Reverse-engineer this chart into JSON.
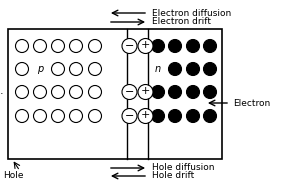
{
  "fig_width": 3.02,
  "fig_height": 1.81,
  "dpi": 100,
  "bg_color": "#ffffff",
  "p_label": "p",
  "n_label": "n",
  "top_arrow1_label": "Electron diffusion",
  "top_arrow2_label": "Electron drift",
  "bot_arrow1_label": "Hole diffusion",
  "bot_arrow2_label": "Hole drift",
  "side_label": "Electron",
  "bot_left_label": "Hole",
  "text_color": "#000000"
}
